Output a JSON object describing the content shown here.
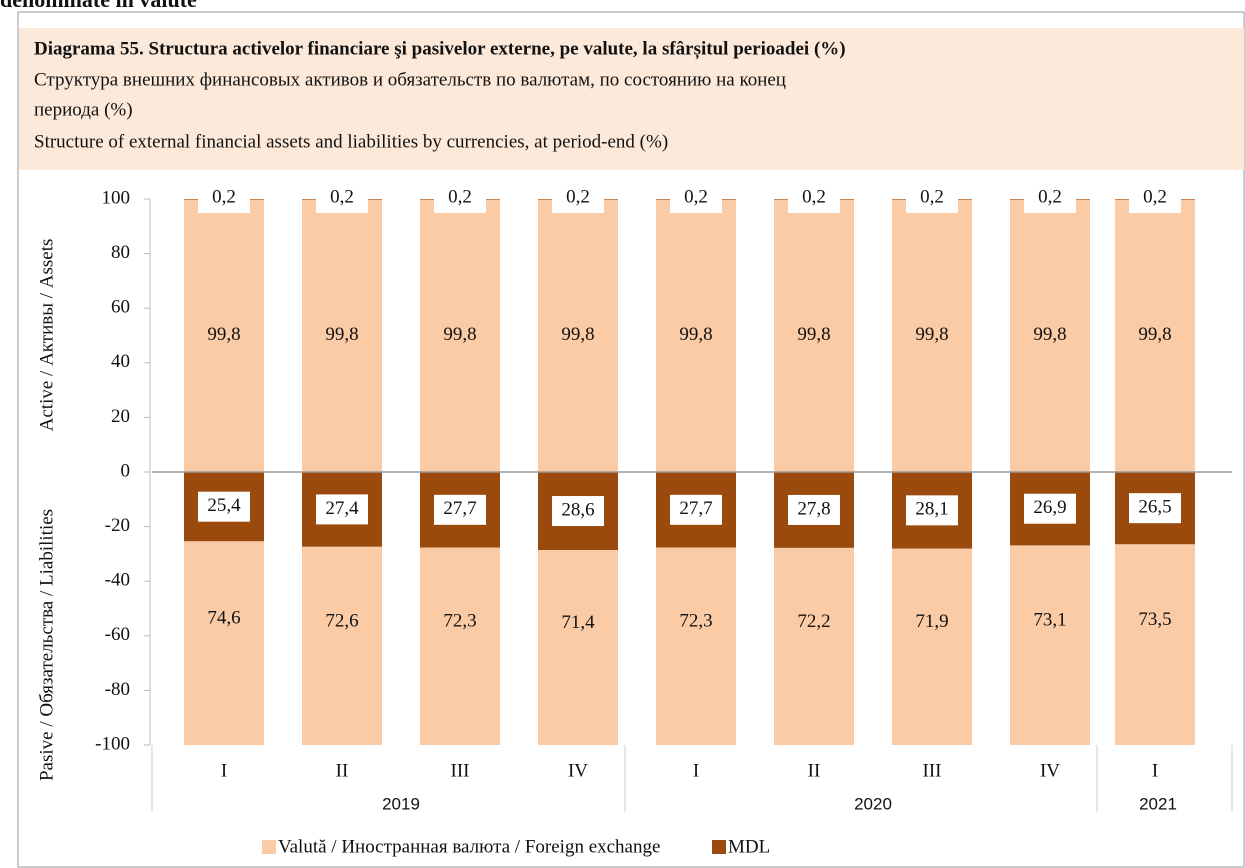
{
  "page_heading": "denominate în valute",
  "chart_data": {
    "type": "bar",
    "title": "Diagrama 55. Structura activelor financiare şi pasivelor externe, pe valute, la sfârșitul perioadei (%)",
    "subtitle_lines": [
      "Структура внешних финансовых активов и обязательств по валютам, по состоянию на конец",
      "периода (%)",
      "Structure of external financial assets and liabilities by currencies, at period-end (%)"
    ],
    "ylabel_top": "Active / Активы / Assets",
    "ylabel_bottom": "Pasive / Обязательства / Liabilities",
    "groups": [
      {
        "label": "2019",
        "categories": [
          "I",
          "II",
          "III",
          "IV"
        ]
      },
      {
        "label": "2020",
        "categories": [
          "I",
          "II",
          "III",
          "IV"
        ]
      },
      {
        "label": "2021",
        "categories": [
          "I"
        ]
      }
    ],
    "series": [
      {
        "name": "Valută / Иностранная валюта / Foreign exchange",
        "color": "#fbcba6",
        "assets": {
          "values": [
            99.8,
            99.8,
            99.8,
            99.8,
            99.8,
            99.8,
            99.8,
            99.8,
            99.8
          ],
          "value_labels": [
            "99,8",
            "99,8",
            "99,8",
            "99,8",
            "99,8",
            "99,8",
            "99,8",
            "99,8",
            "99,8"
          ]
        },
        "liabilities": {
          "values": [
            -74.6,
            -72.6,
            -72.3,
            -71.4,
            -72.3,
            -72.2,
            -71.9,
            -73.1,
            -73.5
          ],
          "value_labels": [
            "74,6",
            "72,6",
            "72,3",
            "71,4",
            "72,3",
            "72,2",
            "71,9",
            "73,1",
            "73,5"
          ]
        }
      },
      {
        "name": "MDL",
        "color": "#9a4a0c",
        "assets": {
          "values": [
            0.2,
            0.2,
            0.2,
            0.2,
            0.2,
            0.2,
            0.2,
            0.2,
            0.2
          ],
          "value_labels": [
            "0,2",
            "0,2",
            "0,2",
            "0,2",
            "0,2",
            "0,2",
            "0,2",
            "0,2",
            "0,2"
          ]
        },
        "liabilities": {
          "values": [
            -25.4,
            -27.4,
            -27.7,
            -28.6,
            -27.7,
            -27.8,
            -28.1,
            -26.9,
            -26.5
          ],
          "value_labels": [
            "25,4",
            "27,4",
            "27,7",
            "28,6",
            "27,7",
            "27,8",
            "28,1",
            "26,9",
            "26,5"
          ]
        }
      }
    ],
    "ylim": [
      -100,
      100
    ],
    "yticks": [
      -100,
      -80,
      -60,
      -40,
      -20,
      0,
      20,
      40,
      60,
      80,
      100
    ]
  }
}
